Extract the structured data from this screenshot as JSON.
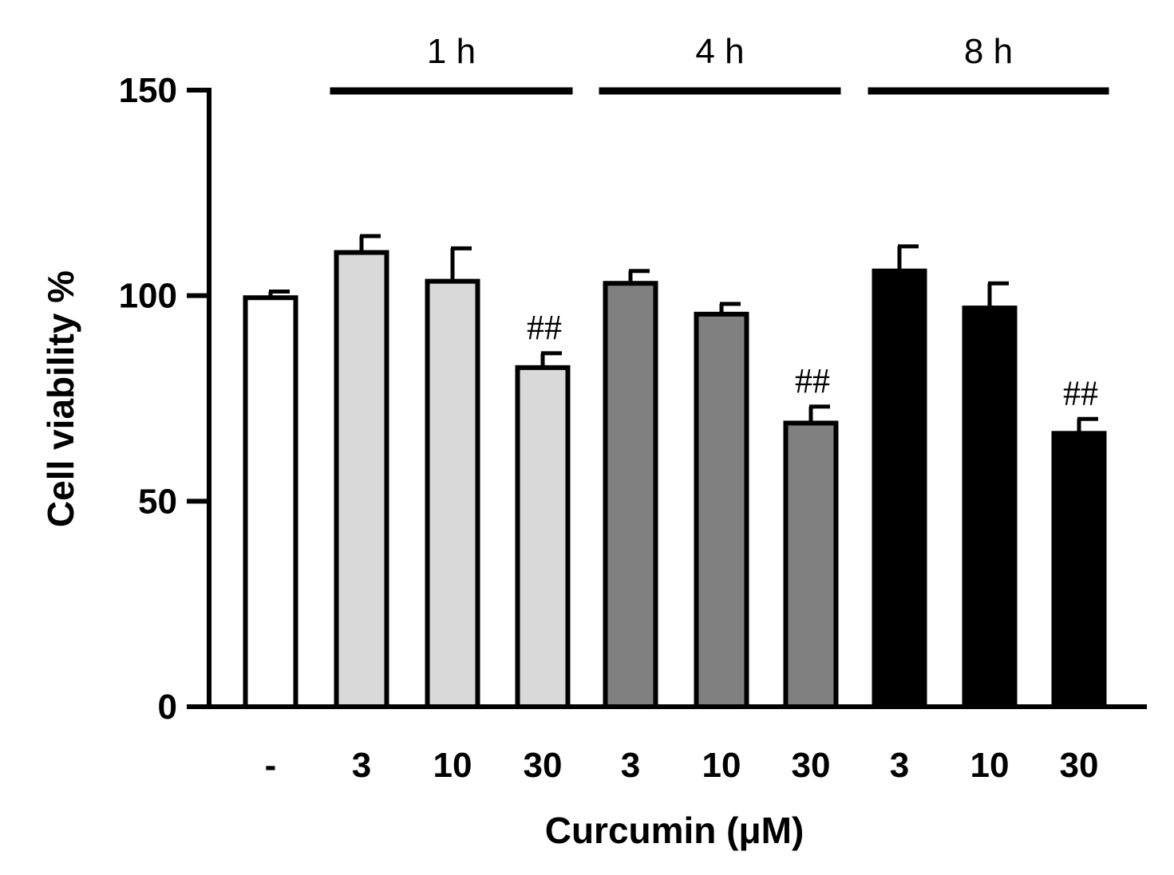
{
  "chart_data": {
    "type": "bar",
    "title": "",
    "xlabel": "Curcumin (μM)",
    "ylabel": "Cell viability %",
    "ylim": [
      0,
      150
    ],
    "yticks": [
      0,
      50,
      100,
      150
    ],
    "grid": false,
    "categories": [
      "-",
      "3",
      "10",
      "30",
      "3",
      "10",
      "30",
      "3",
      "10",
      "30"
    ],
    "values": [
      99.5,
      110.5,
      103.5,
      82.5,
      103,
      95.5,
      69,
      106,
      97,
      66.5
    ],
    "errors": [
      1.5,
      4,
      8,
      3.5,
      3,
      2.5,
      4,
      6,
      6,
      3.5
    ],
    "bar_colors": [
      "#ffffff",
      "#d9d9d9",
      "#d9d9d9",
      "#d9d9d9",
      "#808080",
      "#808080",
      "#808080",
      "#000000",
      "#000000",
      "#000000"
    ],
    "annotations": [
      "",
      "",
      "",
      "##",
      "",
      "",
      "##",
      "",
      "",
      "##"
    ],
    "groups": [
      {
        "label": "1 h",
        "start": 1,
        "end": 3
      },
      {
        "label": "4 h",
        "start": 4,
        "end": 6
      },
      {
        "label": "8 h",
        "start": 7,
        "end": 9
      }
    ]
  }
}
